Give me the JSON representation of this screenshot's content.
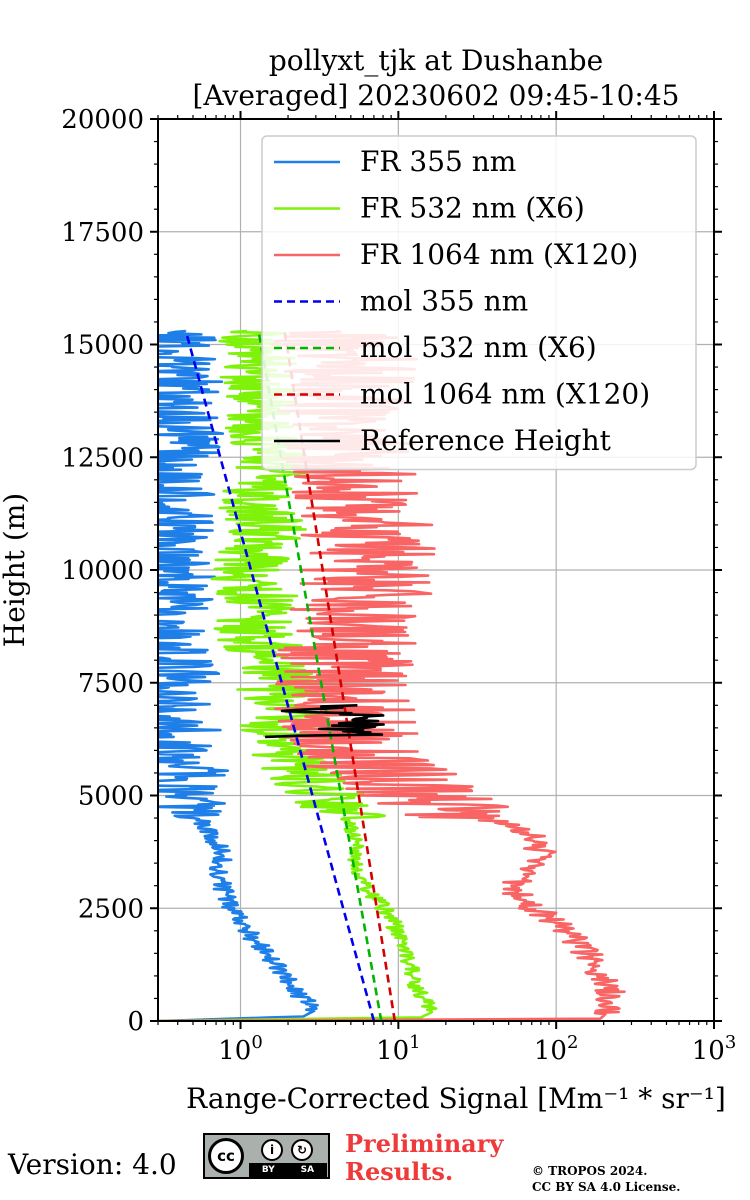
{
  "chart_data": {
    "type": "line",
    "title": [
      "pollyxt_tjk at Dushanbe",
      "[Averaged] 20230602 09:45-10:45"
    ],
    "xlabel": "Range-Corrected Signal [Mm⁻¹ * sr⁻¹]",
    "ylabel": "Height (m)",
    "xscale": "log",
    "xlim": [
      0.3,
      1000
    ],
    "ylim": [
      0,
      20000
    ],
    "grid": true,
    "legend_position": "top-right",
    "yticks": [
      0,
      2500,
      5000,
      7500,
      10000,
      12500,
      15000,
      17500,
      20000
    ],
    "ytick_labels": [
      "0",
      "2500",
      "5000",
      "7500",
      "10000",
      "12500",
      "15000",
      "17500",
      "20000"
    ],
    "xticks": [
      1,
      10,
      100,
      1000
    ],
    "xtick_labels": [
      {
        "base": "10",
        "exp": "0"
      },
      {
        "base": "10",
        "exp": "1"
      },
      {
        "base": "10",
        "exp": "2"
      },
      {
        "base": "10",
        "exp": "3"
      }
    ],
    "series": [
      {
        "name": "FR 355 nm",
        "style": "solid",
        "color": "#1f7fe8",
        "noise": 0.18,
        "points": [
          [
            0.3,
            0
          ],
          [
            2.5,
            100
          ],
          [
            3.0,
            250
          ],
          [
            2.3,
            600
          ],
          [
            1.9,
            1000
          ],
          [
            1.45,
            1500
          ],
          [
            1.1,
            2000
          ],
          [
            0.85,
            2600
          ],
          [
            0.72,
            3200
          ],
          [
            0.78,
            3700
          ],
          [
            0.62,
            4200
          ],
          [
            0.5,
            4700
          ],
          [
            0.38,
            5000
          ],
          [
            0.45,
            5500
          ],
          [
            0.33,
            6000
          ],
          [
            0.42,
            6600
          ],
          [
            0.3,
            7200
          ],
          [
            0.4,
            7700
          ],
          [
            0.32,
            8300
          ],
          [
            0.3,
            9000
          ],
          [
            0.4,
            9600
          ],
          [
            0.3,
            10500
          ],
          [
            0.42,
            11300
          ],
          [
            0.3,
            12000
          ],
          [
            0.45,
            12800
          ],
          [
            0.35,
            13500
          ],
          [
            0.4,
            14200
          ],
          [
            0.33,
            15000
          ],
          [
            0.45,
            15300
          ]
        ]
      },
      {
        "name": "FR 532 nm (X6)",
        "style": "solid",
        "color": "#7ff20a",
        "noise": 0.16,
        "points": [
          [
            0.3,
            0
          ],
          [
            14,
            80
          ],
          [
            16,
            200
          ],
          [
            13,
            800
          ],
          [
            11,
            1500
          ],
          [
            9,
            2300
          ],
          [
            6.5,
            2900
          ],
          [
            5.5,
            3400
          ],
          [
            5.3,
            4000
          ],
          [
            4.5,
            4700
          ],
          [
            3.5,
            5000
          ],
          [
            2.6,
            5300
          ],
          [
            2.0,
            5800
          ],
          [
            1.8,
            6600
          ],
          [
            1.7,
            7500
          ],
          [
            1.55,
            8000
          ],
          [
            1.2,
            8600
          ],
          [
            1.3,
            9400
          ],
          [
            1.1,
            10000
          ],
          [
            1.5,
            10800
          ],
          [
            1.2,
            11500
          ],
          [
            1.7,
            12300
          ],
          [
            1.3,
            13000
          ],
          [
            1.4,
            13800
          ],
          [
            1.3,
            14500
          ],
          [
            1.1,
            15300
          ]
        ]
      },
      {
        "name": "FR 1064 nm (X120)",
        "style": "solid",
        "color": "#f96464",
        "noise": 0.28,
        "points": [
          [
            0.3,
            0
          ],
          [
            190,
            50
          ],
          [
            230,
            300
          ],
          [
            215,
            700
          ],
          [
            180,
            1200
          ],
          [
            120,
            2000
          ],
          [
            65,
            2600
          ],
          [
            55,
            2900
          ],
          [
            60,
            3300
          ],
          [
            80,
            3700
          ],
          [
            75,
            4000
          ],
          [
            55,
            4300
          ],
          [
            35,
            4500
          ],
          [
            20,
            4800
          ],
          [
            12,
            5200
          ],
          [
            8,
            5500
          ],
          [
            5.5,
            5800
          ],
          [
            5,
            6200
          ],
          [
            4.5,
            7000
          ],
          [
            4.5,
            8000
          ],
          [
            5,
            8700
          ],
          [
            6,
            9500
          ],
          [
            6.5,
            10500
          ],
          [
            5.5,
            11500
          ],
          [
            5,
            12500
          ],
          [
            4.5,
            13500
          ],
          [
            5,
            14500
          ],
          [
            4,
            15300
          ]
        ]
      },
      {
        "name": "mol 355 nm",
        "style": "dashed",
        "color": "#0000ee",
        "points": [
          [
            7.0,
            0
          ],
          [
            0.45,
            15300
          ]
        ]
      },
      {
        "name": "mol 532 nm (X6)",
        "style": "dashed",
        "color": "#00b400",
        "points": [
          [
            7.8,
            0
          ],
          [
            1.3,
            15300
          ]
        ]
      },
      {
        "name": "mol 1064 nm (X120)",
        "style": "dashed",
        "color": "#d40000",
        "points": [
          [
            9.5,
            0
          ],
          [
            1.9,
            15300
          ]
        ]
      },
      {
        "name": "Reference Height",
        "style": "solid",
        "color": "#000000",
        "noise": 0.12,
        "points": [
          [
            2.0,
            6300
          ],
          [
            5.5,
            6350
          ],
          [
            4.5,
            6500
          ],
          [
            6.0,
            6600
          ],
          [
            4.5,
            6700
          ],
          [
            5.5,
            6800
          ],
          [
            2.1,
            6900
          ],
          [
            5.5,
            7000
          ]
        ]
      }
    ]
  },
  "footer": {
    "version": "Version: 4.0",
    "cc_license_icon": "cc-by-sa-badge",
    "cc_text": "cc",
    "by_text": "BY",
    "sa_text": "SA",
    "preliminary_line1": "Preliminary",
    "preliminary_line2": "Results.",
    "copyright_line1": "© TROPOS 2024.",
    "copyright_line2": "CC BY SA 4.0 License."
  }
}
